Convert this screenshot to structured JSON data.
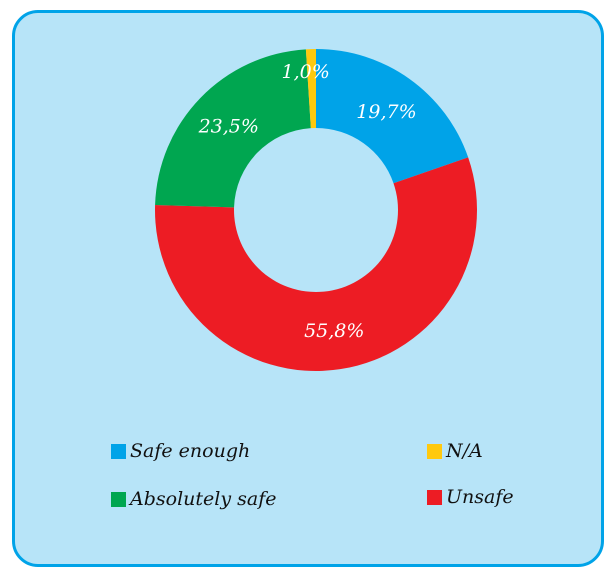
{
  "chart_data": {
    "type": "pie",
    "variant": "donut",
    "title": "",
    "slices": [
      {
        "label": "Safe enough",
        "value": 19.7,
        "display": "19,7%",
        "color": "#00a3e8"
      },
      {
        "label": "Unsafe",
        "value": 55.8,
        "display": "55,8%",
        "color": "#ed1c24"
      },
      {
        "label": "Absolutely safe",
        "value": 23.5,
        "display": "23,5%",
        "color": "#00a650"
      },
      {
        "label": "N/A",
        "value": 1.0,
        "display": "1,0%",
        "color": "#ffc90e"
      }
    ],
    "legend": {
      "placement": "bottom",
      "items": [
        {
          "label": "Safe enough",
          "color": "#00a3e8"
        },
        {
          "label": "N/A",
          "color": "#ffc90e"
        },
        {
          "label": "Absolutely safe",
          "color": "#00a650"
        },
        {
          "label": "Unsafe",
          "color": "#ed1c24"
        }
      ]
    }
  },
  "colors": {
    "card_background": "#b7e4f8",
    "card_border": "#00a3e8"
  }
}
